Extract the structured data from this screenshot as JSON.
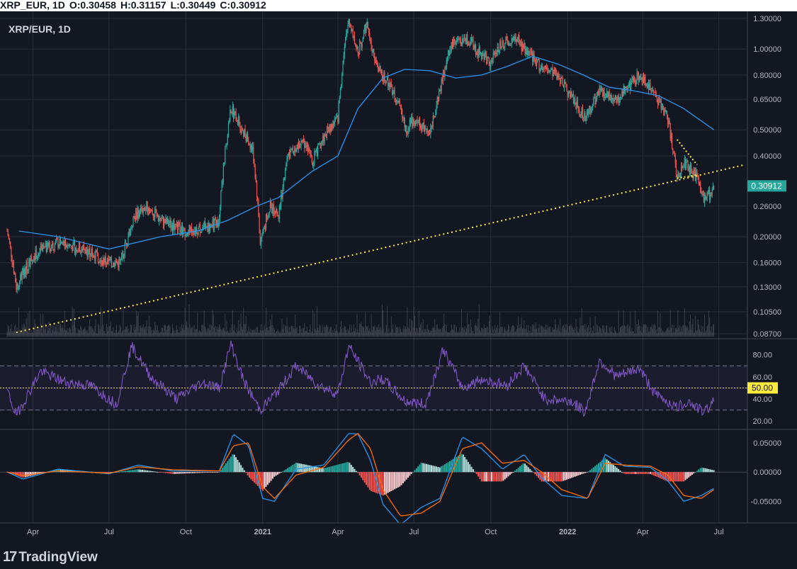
{
  "header": {
    "symbol": "XRP_EUR, 1D",
    "open": "O:0.30458",
    "high": "H:0.31157",
    "low": "L:0.30449",
    "close": "C:0.30912"
  },
  "legend": {
    "title": "XRP/EUR, 1D"
  },
  "price_axis": {
    "ticks": [
      "1.30000",
      "1.00000",
      "0.80000",
      "0.65000",
      "0.50000",
      "0.40000",
      "0.26000",
      "0.20000",
      "0.16000",
      "0.13000",
      "0.10500",
      "0.08700"
    ],
    "current_price_label": "0.30912"
  },
  "rsi_axis": {
    "ticks": [
      "80.00",
      "60.00",
      "40.00",
      "20.00"
    ],
    "midline_label": "50.00"
  },
  "macd_axis": {
    "ticks": [
      "0.05000",
      "0.00000",
      "-0.05000"
    ]
  },
  "time_axis": {
    "ticks": [
      "Apr",
      "Jul",
      "Oct",
      "2021",
      "Apr",
      "Jul",
      "Oct",
      "2022",
      "Apr",
      "Jul"
    ]
  },
  "footer": {
    "brand": "TradingView",
    "logo_mark": "17"
  },
  "colors": {
    "background": "#131722",
    "grid": "#2a2e39",
    "up": "#26a69a",
    "down": "#ef5350",
    "ma": "#2196f3",
    "trendline": "#ffeb3b",
    "rsi": "#7e57c2",
    "macd": "#2196f3",
    "signal": "#ff6d00",
    "price_tag": "#26a69a"
  },
  "chart_data": [
    {
      "type": "candlestick",
      "title": "XRP/EUR, 1D",
      "scale": "log",
      "ylim": [
        0.087,
        1.3
      ],
      "x_ticks": [
        "Apr",
        "Jul",
        "Oct",
        "2021",
        "Apr",
        "Jul",
        "Oct",
        "2022",
        "Apr",
        "Jul"
      ],
      "y_ticks": [
        1.3,
        1.0,
        0.8,
        0.65,
        0.5,
        0.4,
        0.26,
        0.2,
        0.16,
        0.13,
        0.105,
        0.087
      ],
      "last": {
        "open": 0.30458,
        "high": 0.31157,
        "low": 0.30449,
        "close": 0.30912
      },
      "close_series": {
        "dates": [
          "2020-03-01",
          "2020-03-12",
          "2020-04-01",
          "2020-05-01",
          "2020-06-01",
          "2020-07-01",
          "2020-07-15",
          "2020-08-01",
          "2020-08-15",
          "2020-09-01",
          "2020-10-01",
          "2020-11-01",
          "2020-11-10",
          "2020-11-24",
          "2020-12-01",
          "2020-12-20",
          "2020-12-29",
          "2021-01-10",
          "2021-01-20",
          "2021-02-01",
          "2021-02-08",
          "2021-02-20",
          "2021-03-01",
          "2021-03-20",
          "2021-04-01",
          "2021-04-10",
          "2021-04-14",
          "2021-04-25",
          "2021-05-05",
          "2021-05-15",
          "2021-05-25",
          "2021-06-10",
          "2021-06-22",
          "2021-07-01",
          "2021-07-20",
          "2021-08-01",
          "2021-08-15",
          "2021-09-01",
          "2021-09-20",
          "2021-10-01",
          "2021-10-15",
          "2021-11-01",
          "2021-11-10",
          "2021-12-01",
          "2021-12-20",
          "2022-01-01",
          "2022-01-22",
          "2022-02-08",
          "2022-03-01",
          "2022-03-28",
          "2022-04-15",
          "2022-05-01",
          "2022-05-12",
          "2022-05-20",
          "2022-06-05",
          "2022-06-13",
          "2022-06-25"
        ],
        "values": [
          0.21,
          0.13,
          0.17,
          0.19,
          0.18,
          0.16,
          0.16,
          0.24,
          0.26,
          0.23,
          0.21,
          0.22,
          0.23,
          0.6,
          0.55,
          0.42,
          0.19,
          0.26,
          0.24,
          0.4,
          0.43,
          0.45,
          0.38,
          0.5,
          0.55,
          1.05,
          1.3,
          0.95,
          1.25,
          0.9,
          0.8,
          0.65,
          0.5,
          0.55,
          0.48,
          0.7,
          1.05,
          1.1,
          0.95,
          0.9,
          1.05,
          1.1,
          1.0,
          0.85,
          0.8,
          0.7,
          0.55,
          0.7,
          0.65,
          0.8,
          0.68,
          0.55,
          0.32,
          0.38,
          0.33,
          0.27,
          0.3
        ]
      },
      "moving_average": {
        "dates": [
          "2020-03-15",
          "2020-05-01",
          "2020-07-01",
          "2020-09-01",
          "2020-10-15",
          "2020-11-20",
          "2020-12-25",
          "2021-01-20",
          "2021-03-01",
          "2021-04-01",
          "2021-04-25",
          "2021-05-25",
          "2021-06-20",
          "2021-07-20",
          "2021-08-20",
          "2021-09-20",
          "2021-10-20",
          "2021-11-20",
          "2021-12-20",
          "2022-01-20",
          "2022-02-20",
          "2022-03-20",
          "2022-04-20",
          "2022-05-20",
          "2022-06-25"
        ],
        "values": [
          0.21,
          0.2,
          0.18,
          0.2,
          0.21,
          0.23,
          0.26,
          0.28,
          0.35,
          0.4,
          0.6,
          0.78,
          0.84,
          0.83,
          0.78,
          0.8,
          0.86,
          0.94,
          0.88,
          0.8,
          0.72,
          0.7,
          0.67,
          0.6,
          0.5
        ]
      },
      "trendline": {
        "from": {
          "date": "2020-03-12",
          "price": 0.088
        },
        "to": {
          "date": "2022-07-31",
          "price": 0.37
        }
      },
      "wedge": {
        "upper": [
          [
            "2022-05-12",
            0.46
          ],
          [
            "2022-06-05",
            0.37
          ]
        ],
        "lower": [
          [
            "2022-05-12",
            0.33
          ],
          [
            "2022-06-05",
            0.34
          ]
        ]
      }
    },
    {
      "type": "line",
      "title": "RSI",
      "ylim": [
        15,
        92
      ],
      "bands": [
        30,
        70
      ],
      "midline": 50,
      "dates": [
        "2020-03-01",
        "2020-03-12",
        "2020-04-10",
        "2020-05-10",
        "2020-06-10",
        "2020-07-10",
        "2020-07-28",
        "2020-08-20",
        "2020-09-20",
        "2020-10-20",
        "2020-11-10",
        "2020-11-24",
        "2020-12-10",
        "2020-12-29",
        "2021-01-20",
        "2021-02-10",
        "2021-03-10",
        "2021-04-01",
        "2021-04-14",
        "2021-05-10",
        "2021-05-25",
        "2021-06-20",
        "2021-07-15",
        "2021-08-05",
        "2021-08-28",
        "2021-09-20",
        "2021-10-20",
        "2021-11-10",
        "2021-12-05",
        "2022-01-05",
        "2022-01-22",
        "2022-02-08",
        "2022-03-01",
        "2022-03-28",
        "2022-04-15",
        "2022-05-12",
        "2022-05-25",
        "2022-06-13",
        "2022-06-25"
      ],
      "values": [
        48,
        25,
        65,
        55,
        52,
        35,
        88,
        60,
        40,
        55,
        50,
        90,
        55,
        30,
        48,
        70,
        52,
        45,
        88,
        55,
        58,
        38,
        35,
        85,
        50,
        58,
        52,
        70,
        40,
        38,
        28,
        75,
        60,
        68,
        45,
        32,
        38,
        28,
        38
      ]
    },
    {
      "type": "line",
      "title": "MACD",
      "ylim": [
        -0.082,
        0.068
      ],
      "dates": [
        "2020-03-01",
        "2020-03-20",
        "2020-05-01",
        "2020-07-01",
        "2020-08-05",
        "2020-09-15",
        "2020-11-10",
        "2020-11-27",
        "2020-12-15",
        "2021-01-01",
        "2021-01-15",
        "2021-02-10",
        "2021-03-15",
        "2021-04-14",
        "2021-04-25",
        "2021-05-10",
        "2021-05-25",
        "2021-06-15",
        "2021-07-10",
        "2021-08-01",
        "2021-08-28",
        "2021-09-20",
        "2021-10-15",
        "2021-11-10",
        "2021-12-01",
        "2021-12-25",
        "2022-01-25",
        "2022-02-15",
        "2022-03-10",
        "2022-04-10",
        "2022-05-01",
        "2022-05-20",
        "2022-06-10",
        "2022-06-25"
      ],
      "macd": [
        0.0,
        -0.012,
        0.005,
        -0.003,
        0.012,
        0.002,
        0.002,
        0.065,
        0.045,
        -0.045,
        -0.05,
        0.005,
        0.012,
        0.066,
        0.065,
        0.02,
        -0.055,
        -0.09,
        -0.06,
        -0.045,
        0.06,
        0.04,
        0.005,
        0.03,
        -0.01,
        -0.04,
        -0.045,
        0.03,
        0.01,
        0.008,
        -0.015,
        -0.05,
        -0.04,
        -0.028
      ],
      "signal": [
        0.0,
        -0.006,
        0.002,
        -0.002,
        0.009,
        0.004,
        0.002,
        0.045,
        0.05,
        -0.025,
        -0.045,
        -0.005,
        0.008,
        0.055,
        0.066,
        0.04,
        -0.03,
        -0.075,
        -0.07,
        -0.05,
        0.04,
        0.05,
        0.015,
        0.02,
        0.0,
        -0.03,
        -0.045,
        0.015,
        0.012,
        0.01,
        -0.005,
        -0.04,
        -0.045,
        -0.03
      ]
    }
  ]
}
